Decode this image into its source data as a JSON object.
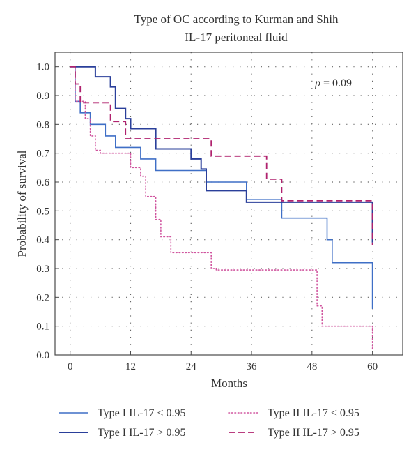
{
  "chart_data": {
    "type": "line",
    "title_lines": [
      "Type of OC according to Kurman and Shih",
      "IL-17 peritoneal fluid"
    ],
    "xlabel": "Months",
    "ylabel": "Probability of survival",
    "xlim": [
      -3,
      66
    ],
    "ylim": [
      0,
      1.05
    ],
    "x_ticks": [
      0,
      12,
      24,
      36,
      48,
      60
    ],
    "x_tick_labels": [
      "0",
      "12",
      "24",
      "36",
      "48",
      "60"
    ],
    "y_ticks": [
      0,
      0.1,
      0.2,
      0.3,
      0.4,
      0.5,
      0.6,
      0.7,
      0.8,
      0.9,
      1.0
    ],
    "y_tick_labels": [
      "0.0",
      "0.1",
      "0.2",
      "0.3",
      "0.4",
      "0.5",
      "0.6",
      "0.7",
      "0.8",
      "0.9",
      "1.0"
    ],
    "grid": true,
    "annotation": {
      "italic": "p",
      "rest": " = 0.09"
    },
    "legend_position": "bottom",
    "series": [
      {
        "name": "Type I IL-17 < 0.95",
        "color": "#3f6fc6",
        "style": "solid",
        "stroke_width": 1.6,
        "x": [
          0,
          1,
          1,
          2,
          2,
          4,
          4,
          7,
          7,
          9,
          9,
          14,
          14,
          17,
          17,
          27,
          27,
          35,
          35,
          42,
          42,
          51,
          51,
          52,
          52,
          60,
          60
        ],
        "y": [
          1.0,
          1.0,
          0.88,
          0.88,
          0.84,
          0.84,
          0.8,
          0.8,
          0.76,
          0.76,
          0.72,
          0.72,
          0.68,
          0.68,
          0.64,
          0.64,
          0.6,
          0.6,
          0.54,
          0.54,
          0.475,
          0.475,
          0.4,
          0.4,
          0.32,
          0.32,
          0.16
        ]
      },
      {
        "name": "Type I IL-17 > 0.95",
        "color": "#2a3f9a",
        "style": "solid",
        "stroke_width": 2.0,
        "x": [
          0,
          5,
          5,
          8,
          8,
          9,
          9,
          11,
          11,
          12,
          12,
          17,
          17,
          24,
          24,
          26,
          26,
          27,
          27,
          35,
          35,
          60,
          60
        ],
        "y": [
          1.0,
          1.0,
          0.965,
          0.965,
          0.93,
          0.93,
          0.855,
          0.855,
          0.82,
          0.82,
          0.785,
          0.785,
          0.715,
          0.715,
          0.68,
          0.68,
          0.645,
          0.645,
          0.57,
          0.57,
          0.53,
          0.53,
          0.39
        ]
      },
      {
        "name": "Type II IL-17 < 0.95",
        "color": "#d0549e",
        "style": "dotted",
        "stroke_width": 1.6,
        "x": [
          0,
          1,
          1,
          3,
          3,
          4,
          4,
          5,
          5,
          6,
          6,
          12,
          12,
          14,
          14,
          15,
          15,
          17,
          17,
          18,
          18,
          20,
          20,
          28,
          28,
          29,
          29,
          49,
          49,
          50,
          50,
          60,
          60
        ],
        "y": [
          1.0,
          1.0,
          0.88,
          0.88,
          0.82,
          0.82,
          0.76,
          0.76,
          0.71,
          0.71,
          0.7,
          0.7,
          0.65,
          0.65,
          0.62,
          0.62,
          0.55,
          0.55,
          0.47,
          0.47,
          0.41,
          0.41,
          0.355,
          0.355,
          0.3,
          0.3,
          0.295,
          0.295,
          0.17,
          0.17,
          0.1,
          0.1,
          0.02
        ]
      },
      {
        "name": "Type II IL-17 > 0.95",
        "color": "#b0226e",
        "style": "dashed",
        "stroke_width": 1.8,
        "x": [
          0,
          1,
          1,
          2,
          2,
          8,
          8,
          11,
          11,
          28,
          28,
          39,
          39,
          42,
          42,
          60,
          60
        ],
        "y": [
          1.0,
          1.0,
          0.94,
          0.94,
          0.875,
          0.875,
          0.81,
          0.81,
          0.75,
          0.75,
          0.69,
          0.69,
          0.61,
          0.61,
          0.535,
          0.535,
          0.38
        ]
      }
    ]
  }
}
